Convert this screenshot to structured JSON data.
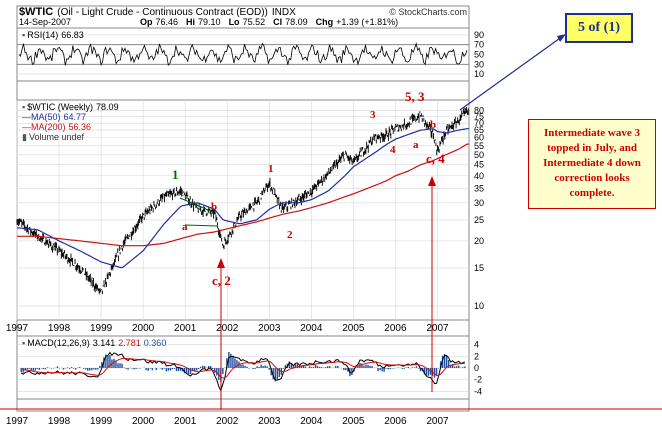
{
  "header": {
    "symbol": "$WTIC",
    "description": "(Oil - Light Crude - Continuous Contract (EOD))",
    "exchange": "INDX",
    "brand": "© StockCharts.com",
    "date": "14-Sep-2007",
    "op_label": "Op",
    "op": "76.46",
    "hi_label": "Hi",
    "hi": "79.10",
    "lo_label": "Lo",
    "lo": "75.52",
    "cl_label": "Cl",
    "cl": "78.09",
    "chg_label": "Chg",
    "chg": "+1.39 (+1.81%)"
  },
  "rsi": {
    "label": "RSI(14)",
    "value": "66.83",
    "ticks": [
      "90",
      "70",
      "50",
      "30",
      "10"
    ],
    "ylim": [
      0,
      100
    ],
    "overbought": 70,
    "oversold": 30
  },
  "price": {
    "label": "$WTIC (Weekly)",
    "value": "78.09",
    "ma50_label": "MA(50)",
    "ma50_value": "64.77",
    "ma200_label": "MA(200)",
    "ma200_value": "56.36",
    "volume_label": "Volume undef",
    "ticks": [
      "80",
      "75",
      "70",
      "65",
      "60",
      "55",
      "50",
      "45",
      "40",
      "35",
      "30",
      "25",
      "20",
      "15",
      "10"
    ],
    "scale": "log",
    "ylim": [
      9,
      84
    ]
  },
  "macd": {
    "label": "MACD(12,26,9)",
    "macd": "3.141",
    "signal": "2.781",
    "hist": "0.360",
    "ticks": [
      "4",
      "2",
      "0",
      "-2",
      "-4"
    ],
    "ylim": [
      -4.8,
      4.8
    ]
  },
  "xaxis": {
    "years": [
      "1997",
      "1998",
      "1999",
      "2000",
      "2001",
      "2002",
      "2003",
      "2004",
      "2005",
      "2006",
      "2007"
    ],
    "xlim": [
      1997.0,
      2007.75
    ]
  },
  "annotations": {
    "w1_label": "1",
    "wa_label": "a",
    "wb_label": "b",
    "wc2_label": "c, 2",
    "i1_label": "1",
    "i2_label": "2",
    "i3_label": "3",
    "i4_label": "4",
    "w53_label": "5, 3",
    "ia_label": "a",
    "ib_label": "b",
    "ic4_label": "c, 4"
  },
  "callouts": {
    "five_of_one": "5 of (1)",
    "note_line1": "Intermediate wave 3",
    "note_line2": "topped in July, and",
    "note_line3": "Intermediate 4 down",
    "note_line4": "correction looks",
    "note_line5": "complete."
  },
  "colors": {
    "price": "#000000",
    "ma50": "#1f2fa0",
    "ma200": "#cc1111",
    "macd": "#000000",
    "signal": "#cc1111",
    "hist": "#1f4f9f",
    "wave_green": "#006600",
    "wave_red": "#cc0000",
    "callout_bg": "#ffff66",
    "note_bg": "#ffffcc"
  },
  "chart_data": {
    "type": "line",
    "xlabel": "",
    "ylabel": "",
    "x": [
      1997.0,
      1997.5,
      1998.0,
      1998.5,
      1999.0,
      1999.5,
      2000.0,
      2000.5,
      2000.9,
      2001.3,
      2001.7,
      2001.9,
      2002.3,
      2002.7,
      2003.0,
      2003.3,
      2003.7,
      2004.0,
      2004.4,
      2004.8,
      2005.0,
      2005.5,
      2005.8,
      2006.0,
      2006.3,
      2006.6,
      2006.9,
      2007.0,
      2007.2,
      2007.5,
      2007.7
    ],
    "series": [
      {
        "name": "$WTIC",
        "values": [
          25,
          21,
          18,
          15,
          11.5,
          19,
          26,
          32,
          34,
          28,
          27,
          19,
          26,
          30,
          37,
          28,
          31,
          34,
          41,
          50,
          46,
          60,
          62,
          66,
          70,
          76,
          62,
          52,
          64,
          72,
          79
        ]
      },
      {
        "name": "MA(50)",
        "values": [
          23,
          22.5,
          20,
          18,
          16,
          15,
          18,
          24,
          29,
          30,
          28,
          25,
          24,
          25,
          28,
          30,
          30,
          31,
          34,
          40,
          44,
          51,
          56,
          59,
          62,
          65,
          66,
          64,
          63,
          65,
          66
        ]
      },
      {
        "name": "MA(200)",
        "values": [
          21,
          21,
          20.5,
          20,
          19.5,
          19,
          19,
          19.5,
          20.5,
          21.5,
          22,
          22.5,
          23.5,
          24.5,
          25.5,
          26.5,
          27.5,
          28.5,
          30,
          32,
          33,
          36,
          38,
          40,
          42,
          45,
          47,
          48,
          50,
          53,
          56
        ]
      }
    ],
    "ylim": [
      9,
      84
    ]
  }
}
